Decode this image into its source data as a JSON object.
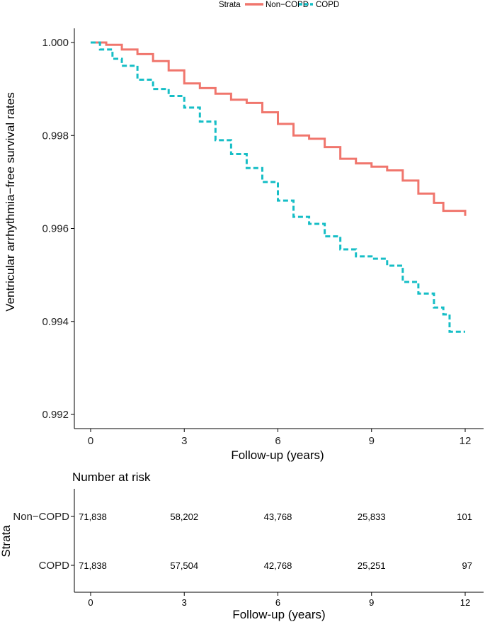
{
  "legend": {
    "title": "Strata",
    "entries": [
      "Non−COPD",
      "COPD"
    ]
  },
  "colors": {
    "non_copd": "#F0766D",
    "copd": "#16BEC6",
    "axis": "#000000",
    "text": "#222222"
  },
  "risk_table": {
    "title": "Number at risk",
    "ylabel": "Strata",
    "xlabel": "Follow-up (years)",
    "row_labels": [
      "Non−COPD",
      "COPD"
    ],
    "times": [
      0,
      3,
      6,
      9,
      12
    ],
    "tick_labels": [
      "0",
      "3",
      "6",
      "9",
      "12"
    ],
    "rows": [
      [
        "71,838",
        "58,202",
        "43,768",
        "25,833",
        "101"
      ],
      [
        "71,838",
        "57,504",
        "42,768",
        "25,251",
        "97"
      ]
    ]
  },
  "chart_data": {
    "type": "line",
    "title": "",
    "xlabel": "Follow-up (years)",
    "ylabel": "Ventricular arrhythmia−free survival rates",
    "xlim": [
      0,
      12
    ],
    "ylim": [
      0.992,
      1.0
    ],
    "xticks": [
      0,
      3,
      6,
      9,
      12
    ],
    "xtick_labels": [
      "0",
      "3",
      "6",
      "9",
      "12"
    ],
    "yticks": [
      0.992,
      0.994,
      0.996,
      0.998,
      1.0
    ],
    "ytick_labels": [
      "0.992",
      "0.994",
      "0.996",
      "0.998",
      "1.000"
    ],
    "grid": false,
    "legend_position": "top",
    "series": [
      {
        "name": "Non−COPD",
        "style": "solid",
        "x": [
          0,
          0.5,
          1.0,
          1.5,
          2.0,
          2.5,
          3.0,
          3.5,
          4.0,
          4.5,
          5.0,
          5.5,
          6.0,
          6.5,
          7.0,
          7.5,
          8.0,
          8.5,
          9.0,
          9.5,
          10.0,
          10.5,
          11.0,
          11.3,
          12.0
        ],
        "y": [
          1.0,
          0.99995,
          0.99985,
          0.99975,
          0.9996,
          0.9994,
          0.99912,
          0.99902,
          0.9989,
          0.99877,
          0.9987,
          0.9985,
          0.99825,
          0.998,
          0.99793,
          0.99775,
          0.9975,
          0.9974,
          0.99733,
          0.99725,
          0.99703,
          0.99675,
          0.99655,
          0.99638,
          0.99627
        ]
      },
      {
        "name": "COPD",
        "style": "dashed",
        "x": [
          0,
          0.3,
          0.7,
          1.0,
          1.5,
          2.0,
          2.5,
          3.0,
          3.5,
          4.0,
          4.5,
          5.0,
          5.5,
          6.0,
          6.5,
          7.0,
          7.5,
          8.0,
          8.5,
          9.0,
          9.5,
          10.0,
          10.5,
          11.0,
          11.3,
          11.5,
          12.0
        ],
        "y": [
          1.0,
          0.99985,
          0.99965,
          0.9995,
          0.9992,
          0.999,
          0.99885,
          0.9986,
          0.9983,
          0.9979,
          0.9976,
          0.9973,
          0.997,
          0.9966,
          0.99625,
          0.9961,
          0.99583,
          0.99555,
          0.9954,
          0.99535,
          0.9952,
          0.99485,
          0.9946,
          0.9943,
          0.99415,
          0.99378,
          0.99378
        ]
      }
    ]
  }
}
